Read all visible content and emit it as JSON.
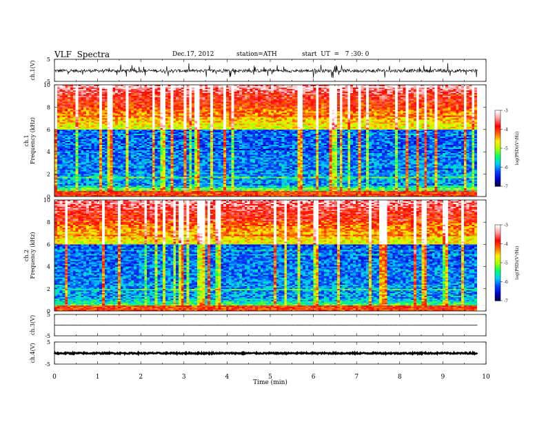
{
  "header": {
    "title": "VLF  Spectra",
    "date": "Dec.17, 2012",
    "station": "station=ATH",
    "start": "start  UT  =   7 :30: 0"
  },
  "chart_data": {
    "type": "heatmap",
    "xlabel": "Time  (min)",
    "xlim": [
      0,
      10
    ],
    "x_ticks": [
      "0",
      "1",
      "2",
      "3",
      "4",
      "5",
      "6",
      "7",
      "8",
      "9",
      "10"
    ],
    "data_end_min": 9.8,
    "panels": [
      {
        "id": "ch1_waveform",
        "type": "line",
        "ylabel": "ch.1(V)",
        "ylim": [
          -5,
          5
        ],
        "y_ticks": [
          "5",
          "-5"
        ],
        "level": -0.2
      },
      {
        "id": "ch1_spectrogram",
        "type": "heatmap",
        "ylabel": "ch.1\nFrequency  (kHz)",
        "ylim": [
          0,
          10
        ],
        "y_ticks": [
          "0",
          "2",
          "4",
          "6",
          "8",
          "10"
        ]
      },
      {
        "id": "ch2_spectrogram",
        "type": "heatmap",
        "ylabel": "ch.2\nFrequency  (kHz)",
        "ylim": [
          0,
          10
        ],
        "y_ticks": [
          "0",
          "2",
          "4",
          "6",
          "8",
          "10"
        ]
      },
      {
        "id": "ch3_waveform",
        "type": "line",
        "ylabel": "ch.3(V)",
        "ylim": [
          -5,
          5
        ],
        "y_ticks": [
          "5",
          "-5"
        ],
        "level": 0.0
      },
      {
        "id": "ch4_waveform",
        "type": "line",
        "ylabel": "ch.4(V)",
        "ylim": [
          -5,
          5
        ],
        "y_ticks": [
          "5",
          "-5"
        ],
        "level": -0.1
      }
    ],
    "colorbar": {
      "label": "log(PSD)(V²/Hz)",
      "range": [
        -7,
        -3
      ],
      "ticks": [
        "-3",
        "-4",
        "-5",
        "-6",
        "-7"
      ],
      "colormap": [
        "#000033",
        "#0000cc",
        "#0044ff",
        "#00ccff",
        "#00ff66",
        "#aaff00",
        "#ffee00",
        "#ff6600",
        "#ff0000",
        "#ff9999",
        "#ffffff"
      ]
    }
  }
}
